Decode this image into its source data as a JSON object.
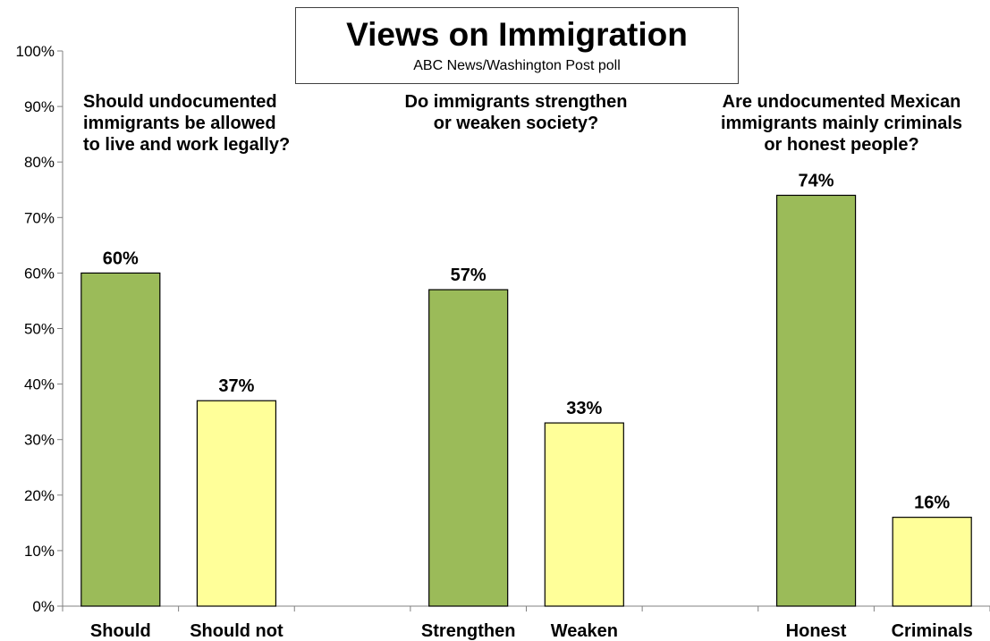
{
  "chart_data": {
    "type": "bar",
    "title": "Views on Immigration",
    "subtitle": "ABC News/Washington Post poll",
    "ylim": [
      0,
      100
    ],
    "y_ticks": [
      "0%",
      "10%",
      "20%",
      "30%",
      "40%",
      "50%",
      "60%",
      "70%",
      "80%",
      "90%",
      "100%"
    ],
    "grid": false,
    "groups": [
      {
        "question": [
          "Should undocumented",
          "immigrants be allowed",
          "to live and work legally?"
        ],
        "bars": [
          {
            "label": "Should",
            "value": 60,
            "value_label": "60%",
            "color": "#9bbb59"
          },
          {
            "label": "Should not",
            "value": 37,
            "value_label": "37%",
            "color": "#ffff99"
          }
        ]
      },
      {
        "question": [
          "Do immigrants strengthen",
          "or weaken society?"
        ],
        "bars": [
          {
            "label": "Strengthen",
            "value": 57,
            "value_label": "57%",
            "color": "#9bbb59"
          },
          {
            "label": "Weaken",
            "value": 33,
            "value_label": "33%",
            "color": "#ffff99"
          }
        ]
      },
      {
        "question": [
          "Are undocumented Mexican",
          "immigrants mainly criminals",
          "or honest people?"
        ],
        "bars": [
          {
            "label": "Honest",
            "value": 74,
            "value_label": "74%",
            "color": "#9bbb59"
          },
          {
            "label": "Criminals",
            "value": 16,
            "value_label": "16%",
            "color": "#ffff99"
          }
        ]
      }
    ]
  }
}
